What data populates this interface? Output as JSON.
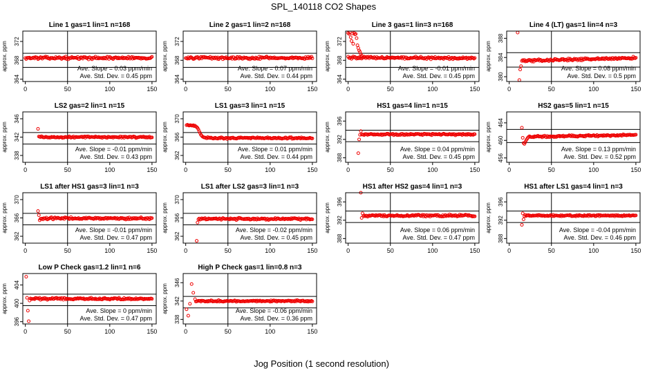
{
  "figure": {
    "title": "SPL_140118  CO2 Shapes",
    "xlabel": "Jog Position (1 second resolution)"
  },
  "chart_data": [
    {
      "type": "scatter",
      "title": "Line 1 gas=1 lin=1 n=168",
      "ylabel": "approx. ppm",
      "xlim": [
        -3,
        155
      ],
      "ylim": [
        363.5,
        374.2
      ],
      "xticks": [
        0,
        50,
        100,
        150
      ],
      "yticks": [
        364,
        368,
        372
      ],
      "hlines": [
        369.5,
        366.5
      ],
      "vline": 50,
      "start": 0,
      "base": 368.5,
      "noise": 0.3,
      "slope": 0,
      "x": [],
      "y": [],
      "slope_text": "Ave. Slope = 0.03 ppm/min",
      "std_text": "Ave. Std. Dev. = 0.45 ppm"
    },
    {
      "type": "scatter",
      "title": "Line 2 gas=1 lin=2 n=168",
      "ylabel": "approx. ppm",
      "xlim": [
        -3,
        155
      ],
      "ylim": [
        363.5,
        374.2
      ],
      "xticks": [
        0,
        50,
        100,
        150
      ],
      "yticks": [
        364,
        368,
        372
      ],
      "hlines": [
        369.5,
        366.5
      ],
      "vline": 50,
      "start": 0,
      "base": 368.5,
      "noise": 0.3,
      "slope": 0,
      "x": [],
      "y": [],
      "slope_text": "Ave. Slope = 0.07 ppm/min",
      "std_text": "Ave. Std. Dev. = 0.44 ppm"
    },
    {
      "type": "scatter",
      "title": "Line 3 gas=1 lin=3 n=168",
      "ylabel": "approx. ppm",
      "xlim": [
        -3,
        155
      ],
      "ylim": [
        363.5,
        374.2
      ],
      "xticks": [
        0,
        50,
        100,
        150
      ],
      "yticks": [
        364,
        368,
        372
      ],
      "hlines": [
        369.5,
        366.5
      ],
      "vline": 50,
      "start": 0,
      "base": 368.5,
      "noise": 0.3,
      "slope": -0.001,
      "x": [
        0,
        1,
        2,
        3,
        4,
        5,
        6,
        7,
        8,
        9,
        10,
        11,
        12,
        13,
        14,
        15,
        16
      ],
      "y": [
        373.8,
        373.6,
        373.9,
        372.9,
        372.1,
        373.7,
        371.5,
        373.8,
        373.5,
        373.6,
        372.7,
        371.2,
        370.6,
        370.1,
        369.8,
        369.3,
        369.0
      ],
      "slope_text": "Ave. Slope = -0.01 ppm/min",
      "std_text": "Ave. Std. Dev. = 0.45 ppm"
    },
    {
      "type": "scatter",
      "title": "Line 4 (LT) gas=1 lin=4 n=3",
      "ylabel": "approx. ppm",
      "xlim": [
        -3,
        155
      ],
      "ylim": [
        379,
        389.5
      ],
      "xticks": [
        0,
        50,
        100,
        150
      ],
      "yticks": [
        380,
        384,
        388
      ],
      "hlines": [
        385.0,
        382.0
      ],
      "vline": 50,
      "start": 15,
      "base": 383.6,
      "noise": 0.3,
      "slope": 0.004,
      "x": [
        10,
        12,
        13,
        14
      ],
      "y": [
        389.2,
        379.3,
        381.5,
        382.2
      ],
      "slope_text": "Ave. Slope = 0.08 ppm/min",
      "std_text": "Ave. Std. Dev. = 0.5 ppm"
    },
    {
      "type": "scatter",
      "title": "LS2 gas=2 lin=1 n=15",
      "ylabel": "approx. ppm",
      "xlim": [
        -3,
        155
      ],
      "ylim": [
        336.5,
        347.5
      ],
      "xticks": [
        0,
        50,
        100,
        150
      ],
      "yticks": [
        338,
        342,
        346
      ],
      "hlines": [
        343.0,
        340.5
      ],
      "vline": 50,
      "start": 16,
      "base": 342.0,
      "noise": 0.22,
      "slope": 0,
      "x": [
        15
      ],
      "y": [
        343.8
      ],
      "slope_text": "Ave. Slope = -0.01 ppm/min",
      "std_text": "Ave. Std. Dev. = 0.43 ppm"
    },
    {
      "type": "scatter",
      "title": "LS1 gas=3 lin=1 n=15",
      "ylabel": "approx. ppm",
      "xlim": [
        -3,
        155
      ],
      "ylim": [
        360.5,
        371.5
      ],
      "xticks": [
        0,
        50,
        100,
        150
      ],
      "yticks": [
        362,
        366,
        370
      ],
      "hlines": [
        367.0,
        364.5
      ],
      "vline": 50,
      "start": 25,
      "base": 365.8,
      "noise": 0.22,
      "slope": 0,
      "x": [
        1,
        2,
        3,
        4,
        5,
        6,
        7,
        8,
        9,
        10,
        11,
        12,
        13,
        14,
        15,
        16,
        17,
        18,
        19,
        20,
        21,
        22,
        23,
        24
      ],
      "y": [
        368.6,
        368.7,
        368.6,
        368.5,
        368.6,
        368.6,
        368.5,
        368.5,
        368.6,
        368.4,
        368.5,
        368.3,
        368.2,
        368.0,
        367.7,
        367.3,
        366.9,
        366.5,
        366.3,
        366.1,
        366.0,
        365.9,
        365.9,
        365.8
      ],
      "slope_text": "Ave. Slope = 0.01 ppm/min",
      "std_text": "Ave. Std. Dev. = 0.44 ppm"
    },
    {
      "type": "scatter",
      "title": "HS1 gas=4 lin=1 n=15",
      "ylabel": "approx. ppm",
      "xlim": [
        -3,
        155
      ],
      "ylim": [
        387,
        398
      ],
      "xticks": [
        0,
        50,
        100,
        150
      ],
      "yticks": [
        388,
        392,
        396
      ],
      "hlines": [
        394.0,
        391.5
      ],
      "vline": 50,
      "start": 16,
      "base": 393.1,
      "noise": 0.2,
      "slope": 0,
      "x": [
        12,
        13,
        14,
        15
      ],
      "y": [
        389.0,
        392.0,
        393.0,
        393.8
      ],
      "slope_text": "Ave. Slope = 0.04 ppm/min",
      "std_text": "Ave. Std. Dev. = 0.45 ppm"
    },
    {
      "type": "scatter",
      "title": "HS2 gas=5 lin=1 n=15",
      "ylabel": "approx. ppm",
      "xlim": [
        -3,
        155
      ],
      "ylim": [
        455,
        466.5
      ],
      "xticks": [
        0,
        50,
        100,
        150
      ],
      "yticks": [
        456,
        460,
        464
      ],
      "hlines": [
        462.5,
        459.5
      ],
      "vline": 50,
      "start": 24,
      "base": 461.0,
      "noise": 0.25,
      "slope": 0.003,
      "x": [
        15,
        16,
        17,
        18,
        19,
        20,
        21,
        22,
        23
      ],
      "y": [
        462.9,
        460.6,
        459.4,
        459.2,
        459.6,
        460.0,
        460.3,
        460.6,
        460.8
      ],
      "slope_text": "Ave. Slope = 0.13 ppm/min",
      "std_text": "Ave. Std. Dev. = 0.52 ppm"
    },
    {
      "type": "scatter",
      "title": "LS1 after HS1 gas=3 lin=1 n=3",
      "ylabel": "approx. ppm",
      "xlim": [
        -3,
        155
      ],
      "ylim": [
        360.5,
        371.5
      ],
      "xticks": [
        0,
        50,
        100,
        150
      ],
      "yticks": [
        362,
        366,
        370
      ],
      "hlines": [
        367.0,
        364.5
      ],
      "vline": 50,
      "start": 18,
      "base": 365.9,
      "noise": 0.28,
      "slope": 0,
      "x": [
        15,
        16,
        17
      ],
      "y": [
        367.5,
        366.6,
        365.5
      ],
      "slope_text": "Ave. Slope = -0.01 ppm/min",
      "std_text": "Ave. Std. Dev. = 0.47 ppm"
    },
    {
      "type": "scatter",
      "title": "LS1 after LS2 gas=3 lin=1 n=3",
      "ylabel": "approx. ppm",
      "xlim": [
        -3,
        155
      ],
      "ylim": [
        360.5,
        371.5
      ],
      "xticks": [
        0,
        50,
        100,
        150
      ],
      "yticks": [
        362,
        366,
        370
      ],
      "hlines": [
        367.0,
        364.5
      ],
      "vline": 50,
      "start": 15,
      "base": 365.8,
      "noise": 0.25,
      "slope": 0,
      "x": [
        13,
        14
      ],
      "y": [
        361.0,
        365.0
      ],
      "slope_text": "Ave. Slope = -0.02 ppm/min",
      "std_text": "Ave. Std. Dev. = 0.45 ppm"
    },
    {
      "type": "scatter",
      "title": "HS1 after HS2 gas=4 lin=1 n=3",
      "ylabel": "approx. ppm",
      "xlim": [
        -3,
        155
      ],
      "ylim": [
        387,
        398
      ],
      "xticks": [
        0,
        50,
        100,
        150
      ],
      "yticks": [
        388,
        392,
        396
      ],
      "hlines": [
        394.0,
        391.5
      ],
      "vline": 50,
      "start": 18,
      "base": 393.0,
      "noise": 0.25,
      "slope": 0,
      "x": [
        15,
        16,
        17
      ],
      "y": [
        398.0,
        392.5,
        393.5
      ],
      "slope_text": "Ave. Slope = 0.06 ppm/min",
      "std_text": "Ave. Std. Dev. = 0.47 ppm"
    },
    {
      "type": "scatter",
      "title": "HS1 after LS1 gas=4 lin=1 n=3",
      "ylabel": "approx. ppm",
      "xlim": [
        -3,
        155
      ],
      "ylim": [
        387,
        398
      ],
      "xticks": [
        0,
        50,
        100,
        150
      ],
      "yticks": [
        388,
        392,
        396
      ],
      "hlines": [
        394.0,
        391.5
      ],
      "vline": 50,
      "start": 18,
      "base": 393.0,
      "noise": 0.22,
      "slope": 0,
      "x": [
        15,
        16,
        17
      ],
      "y": [
        391.0,
        393.5,
        392.2
      ],
      "slope_text": "Ave. Slope = -0.04 ppm/min",
      "std_text": "Ave. Std. Dev. = 0.46 ppm"
    },
    {
      "type": "scatter",
      "title": "Low P Check gas=1.2 lin=1 n=6",
      "ylabel": "approx. ppm",
      "xlim": [
        -3,
        155
      ],
      "ylim": [
        395.5,
        406.5
      ],
      "xticks": [
        0,
        50,
        100,
        150
      ],
      "yticks": [
        396,
        400,
        404
      ],
      "hlines": [
        402.0,
        399.5
      ],
      "vline": 50,
      "start": 6,
      "base": 401.0,
      "noise": 0.25,
      "slope": 0,
      "x": [
        1,
        2,
        3,
        4,
        5
      ],
      "y": [
        405.8,
        401.2,
        398.4,
        396.1,
        400.6
      ],
      "slope_text": "Ave. Slope = 0 ppm/min",
      "std_text": "Ave. Std. Dev. = 0.47 ppm"
    },
    {
      "type": "scatter",
      "title": "High P Check gas=1 lin=0.8 n=3",
      "ylabel": "approx. ppm",
      "xlim": [
        -3,
        155
      ],
      "ylim": [
        337,
        348
      ],
      "xticks": [
        0,
        50,
        100,
        150
      ],
      "yticks": [
        338,
        342,
        346
      ],
      "hlines": [
        343.0,
        340.5
      ],
      "vline": 50,
      "start": 12,
      "base": 342.0,
      "noise": 0.2,
      "slope": 0,
      "x": [
        1,
        3,
        5,
        7,
        9,
        11
      ],
      "y": [
        340.2,
        338.8,
        341.4,
        345.7,
        343.8,
        342.4
      ],
      "slope_text": "Ave. Slope = -0.06 ppm/min",
      "std_text": "Ave. Std. Dev. = 0.36 ppm"
    }
  ]
}
